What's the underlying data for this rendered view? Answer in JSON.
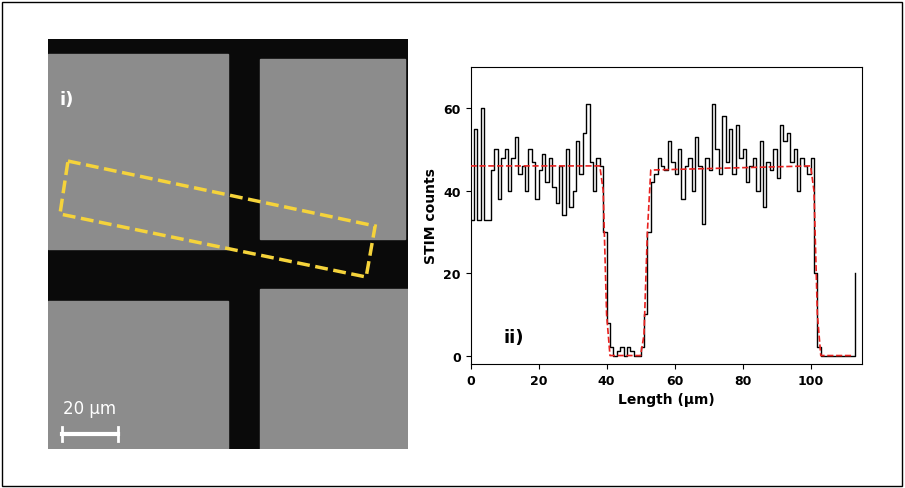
{
  "chart_data": [
    {
      "type": "image",
      "label": "i)",
      "scale_bar": "20 µm"
    },
    {
      "type": "step",
      "label": "ii)",
      "xlabel": "Length (µm)",
      "ylabel": "STIM counts",
      "xlim": [
        0,
        115
      ],
      "xticks": [
        0,
        20,
        40,
        60,
        80,
        100
      ],
      "ylim": [
        -2,
        70
      ],
      "yticks": [
        0,
        20,
        40,
        60
      ],
      "series": [
        {
          "type": "step",
          "color": "#000000",
          "line_style": "solid",
          "x": [
            0,
            1,
            2,
            3,
            4,
            5,
            6,
            7,
            8,
            9,
            10,
            11,
            12,
            13,
            14,
            15,
            16,
            17,
            18,
            19,
            20,
            21,
            22,
            23,
            24,
            25,
            26,
            27,
            28,
            29,
            30,
            31,
            32,
            33,
            34,
            35,
            36,
            37,
            38,
            39,
            40,
            41,
            42,
            43,
            44,
            45,
            46,
            47,
            48,
            49,
            50,
            51,
            52,
            53,
            54,
            55,
            56,
            57,
            58,
            59,
            60,
            61,
            62,
            63,
            64,
            65,
            66,
            67,
            68,
            69,
            70,
            71,
            72,
            73,
            74,
            75,
            76,
            77,
            78,
            79,
            80,
            81,
            82,
            83,
            84,
            85,
            86,
            87,
            88,
            89,
            90,
            91,
            92,
            93,
            94,
            95,
            96,
            97,
            98,
            99,
            100,
            101,
            102,
            103,
            104,
            105,
            106,
            107,
            108,
            109,
            110,
            111,
            112,
            113
          ],
          "values": [
            33,
            55,
            33,
            60,
            33,
            33,
            45,
            50,
            38,
            48,
            50,
            40,
            48,
            53,
            44,
            46,
            40,
            50,
            47,
            38,
            45,
            49,
            42,
            48,
            41,
            37,
            46,
            34,
            50,
            36,
            40,
            52,
            44,
            54,
            61,
            47,
            40,
            48,
            46,
            30,
            8,
            2,
            0,
            1,
            2,
            0,
            2,
            1,
            0,
            0,
            2,
            10,
            30,
            42,
            44,
            48,
            46,
            45,
            52,
            47,
            44,
            50,
            38,
            46,
            48,
            40,
            53,
            46,
            32,
            48,
            45,
            61,
            50,
            44,
            58,
            47,
            55,
            44,
            56,
            48,
            50,
            42,
            46,
            48,
            40,
            52,
            36,
            47,
            45,
            50,
            43,
            56,
            52,
            54,
            47,
            50,
            40,
            48,
            46,
            44,
            48,
            20,
            2,
            0,
            0,
            0,
            0,
            0,
            0,
            0,
            0,
            0,
            0,
            20
          ]
        },
        {
          "type": "line",
          "color": "#e8211f",
          "line_style": "dashed",
          "x": [
            0,
            38,
            39,
            40,
            41,
            50,
            51,
            52,
            53,
            100,
            101,
            102,
            103,
            112
          ],
          "values": [
            46,
            46,
            40,
            10,
            0,
            0,
            5,
            30,
            45,
            46,
            40,
            10,
            0,
            0
          ]
        }
      ]
    }
  ]
}
